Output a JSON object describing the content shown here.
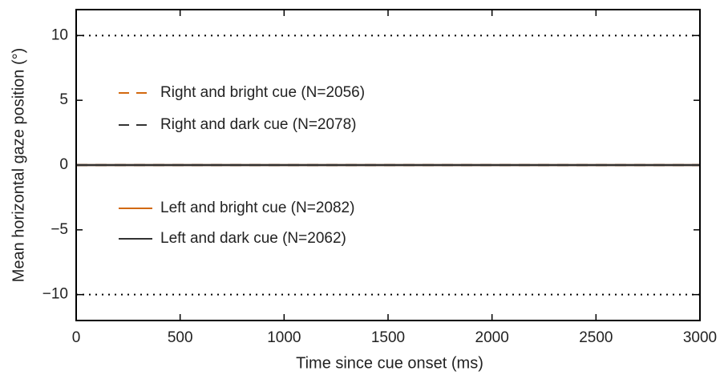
{
  "chart_data": {
    "type": "line",
    "xlabel": "Time since cue onset (ms)",
    "ylabel": "Mean horizontal gaze position (°)",
    "x": [
      0,
      500,
      1000,
      1500,
      2000,
      2500,
      3000
    ],
    "series": [
      {
        "name": "Right and bright cue (N=2056)",
        "color": "#d2690f",
        "linestyle": "dashed",
        "values": [
          0,
          0,
          0,
          0,
          0,
          0,
          0
        ]
      },
      {
        "name": "Right and dark cue (N=2078)",
        "color": "#333333",
        "linestyle": "dashed",
        "values": [
          0,
          0,
          0,
          0,
          0,
          0,
          0
        ]
      },
      {
        "name": "Left and bright cue (N=2082)",
        "color": "#d2690f",
        "linestyle": "solid",
        "values": [
          0,
          0,
          0,
          0,
          0,
          0,
          0
        ]
      },
      {
        "name": "Left and dark cue (N=2062)",
        "color": "#333333",
        "linestyle": "solid",
        "values": [
          0,
          0,
          0,
          0,
          0,
          0,
          0
        ]
      }
    ],
    "hlines": [
      10,
      -10
    ],
    "xlim": [
      0,
      3000
    ],
    "xticks": [
      0,
      500,
      1000,
      1500,
      2000,
      2500,
      3000
    ],
    "ylim": [
      -12,
      12
    ],
    "yticks": [
      {
        "value": -10,
        "label": "−10"
      },
      {
        "value": -5,
        "label": "−5"
      },
      0,
      5,
      10
    ]
  }
}
